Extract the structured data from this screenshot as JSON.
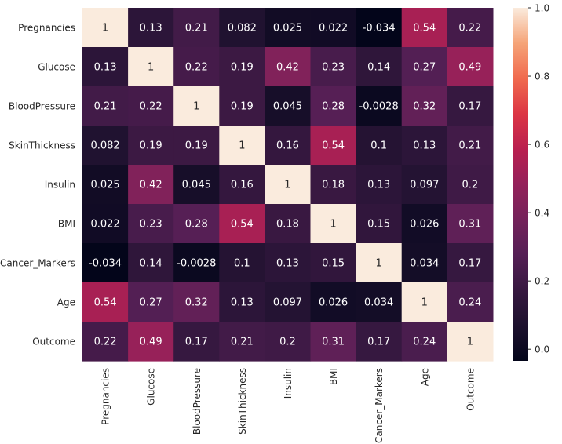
{
  "chart_data": {
    "type": "heatmap",
    "title": "",
    "xlabel": "",
    "ylabel": "",
    "labels": [
      "Pregnancies",
      "Glucose",
      "BloodPressure",
      "SkinThickness",
      "Insulin",
      "BMI",
      "Cancer_Markers",
      "Age",
      "Outcome"
    ],
    "value_labels": [
      [
        "1",
        "0.13",
        "0.21",
        "0.082",
        "0.025",
        "0.022",
        "-0.034",
        "0.54",
        "0.22"
      ],
      [
        "0.13",
        "1",
        "0.22",
        "0.19",
        "0.42",
        "0.23",
        "0.14",
        "0.27",
        "0.49"
      ],
      [
        "0.21",
        "0.22",
        "1",
        "0.19",
        "0.045",
        "0.28",
        "-0.0028",
        "0.32",
        "0.17"
      ],
      [
        "0.082",
        "0.19",
        "0.19",
        "1",
        "0.16",
        "0.54",
        "0.1",
        "0.13",
        "0.21"
      ],
      [
        "0.025",
        "0.42",
        "0.045",
        "0.16",
        "1",
        "0.18",
        "0.13",
        "0.097",
        "0.2"
      ],
      [
        "0.022",
        "0.23",
        "0.28",
        "0.54",
        "0.18",
        "1",
        "0.15",
        "0.026",
        "0.31"
      ],
      [
        "-0.034",
        "0.14",
        "-0.0028",
        "0.1",
        "0.13",
        "0.15",
        "1",
        "0.034",
        "0.17"
      ],
      [
        "0.54",
        "0.27",
        "0.32",
        "0.13",
        "0.097",
        "0.026",
        "0.034",
        "1",
        "0.24"
      ],
      [
        "0.22",
        "0.49",
        "0.17",
        "0.21",
        "0.2",
        "0.31",
        "0.17",
        "0.24",
        "1"
      ]
    ],
    "colorbar": {
      "min": -0.034,
      "max": 1.0,
      "ticks": [
        0.0,
        0.2,
        0.4,
        0.6,
        0.8,
        1.0
      ],
      "tick_labels": [
        "0.0",
        "0.2",
        "0.4",
        "0.6",
        "0.8",
        "1.0"
      ],
      "colormap": "rocket"
    }
  }
}
